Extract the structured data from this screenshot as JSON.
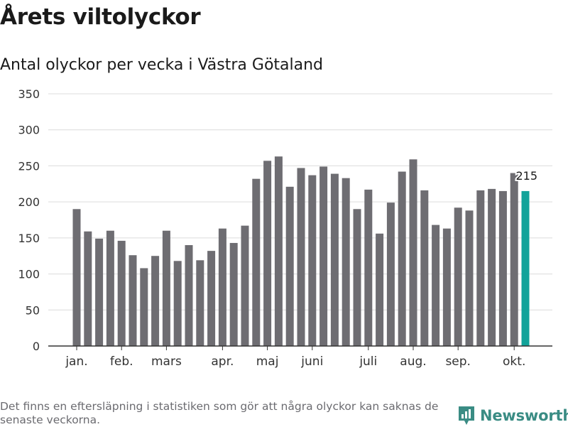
{
  "header": {
    "title": "Årets viltolyckor",
    "subtitle": "Antal olyckor per vecka i Västra Götaland"
  },
  "footer": {
    "note": "Det finns en eftersläpning i statistiken som gör att några olyckor kan saknas de senaste veckorna.",
    "brand": "Newsworthy"
  },
  "colors": {
    "bar": "#6e6d72",
    "highlight": "#12a39a",
    "grid": "#dcdcdc",
    "axis": "#333333",
    "brand": "#3a8c84"
  },
  "chart_data": {
    "type": "bar",
    "title": "Antal olyckor per vecka i Västra Götaland",
    "xlabel": "",
    "ylabel": "",
    "ylim": [
      0,
      350
    ],
    "yticks": [
      0,
      50,
      100,
      150,
      200,
      250,
      300,
      350
    ],
    "values": [
      190,
      159,
      149,
      160,
      146,
      126,
      108,
      125,
      160,
      118,
      140,
      119,
      132,
      163,
      143,
      167,
      232,
      257,
      263,
      221,
      247,
      237,
      249,
      239,
      233,
      190,
      217,
      156,
      199,
      242,
      259,
      216,
      168,
      163,
      192,
      188,
      216,
      218,
      215,
      240,
      215
    ],
    "highlight_index": 40,
    "data_label": {
      "index": 40,
      "text": "215"
    },
    "month_labels": [
      {
        "label": "jan.",
        "week": 1
      },
      {
        "label": "feb.",
        "week": 5
      },
      {
        "label": "mars",
        "week": 9
      },
      {
        "label": "apr.",
        "week": 14
      },
      {
        "label": "maj",
        "week": 18
      },
      {
        "label": "juni",
        "week": 22
      },
      {
        "label": "juli",
        "week": 27
      },
      {
        "label": "aug.",
        "week": 31
      },
      {
        "label": "sep.",
        "week": 35
      },
      {
        "label": "okt.",
        "week": 40
      }
    ],
    "grid": true,
    "legend": "none"
  }
}
